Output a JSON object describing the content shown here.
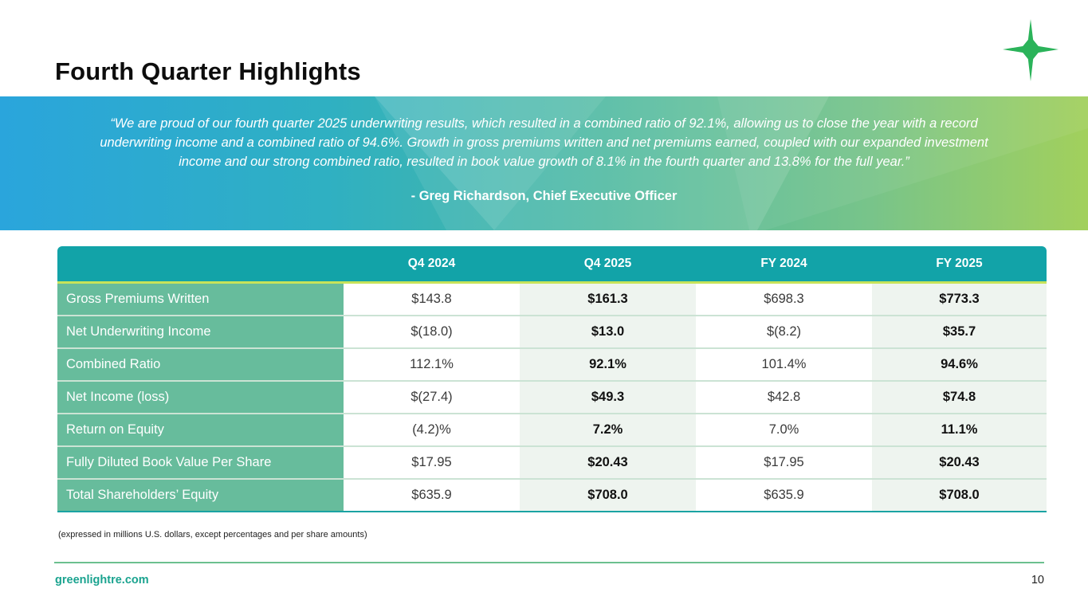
{
  "title": "Fourth Quarter Highlights",
  "banner": {
    "quote": "“We are proud of our fourth quarter 2025 underwriting results, which resulted in a combined ratio of 92.1%, allowing us to close the year with a record underwriting income and a combined ratio of 94.6%. Growth in gross premiums written and net premiums earned, coupled with our expanded investment income and our strong combined ratio, resulted in book value growth of 8.1% in the fourth quarter and 13.8% for the full year.”",
    "author": "- Greg Richardson, Chief Executive Officer"
  },
  "table": {
    "headers": [
      "",
      "Q4 2024",
      "Q4 2025",
      "FY 2024",
      "FY 2025"
    ],
    "rows": [
      {
        "label": "Gross Premiums Written",
        "q4_2024": "$143.8",
        "q4_2025": "$161.3",
        "fy_2024": "$698.3",
        "fy_2025": "$773.3"
      },
      {
        "label": "Net Underwriting Income",
        "q4_2024": "$(18.0)",
        "q4_2025": "$13.0",
        "fy_2024": "$(8.2)",
        "fy_2025": "$35.7"
      },
      {
        "label": "Combined Ratio",
        "q4_2024": "112.1%",
        "q4_2025": "92.1%",
        "fy_2024": "101.4%",
        "fy_2025": "94.6%"
      },
      {
        "label": "Net Income (loss)",
        "q4_2024": "$(27.4)",
        "q4_2025": "$49.3",
        "fy_2024": "$42.8",
        "fy_2025": "$74.8"
      },
      {
        "label": "Return on Equity",
        "q4_2024": "(4.2)%",
        "q4_2025": "7.2%",
        "fy_2024": "7.0%",
        "fy_2025": "11.1%"
      },
      {
        "label": "Fully Diluted Book Value Per Share",
        "q4_2024": "$17.95",
        "q4_2025": "$20.43",
        "fy_2024": "$17.95",
        "fy_2025": "$20.43"
      },
      {
        "label": "Total Shareholders’ Equity",
        "q4_2024": "$635.9",
        "q4_2025": "$708.0",
        "fy_2024": "$635.9",
        "fy_2025": "$708.0"
      }
    ]
  },
  "note": "(expressed in millions U.S. dollars, except percentages and per share amounts)",
  "footer": {
    "website": "greenlightre.com",
    "page_number": "10"
  },
  "colors": {
    "header_teal": "#12a3a8",
    "label_green": "#67bc9c",
    "accent_lime": "#c7e35a",
    "star_green": "#2bb35a"
  },
  "icons": {
    "logo": "star-icon"
  }
}
